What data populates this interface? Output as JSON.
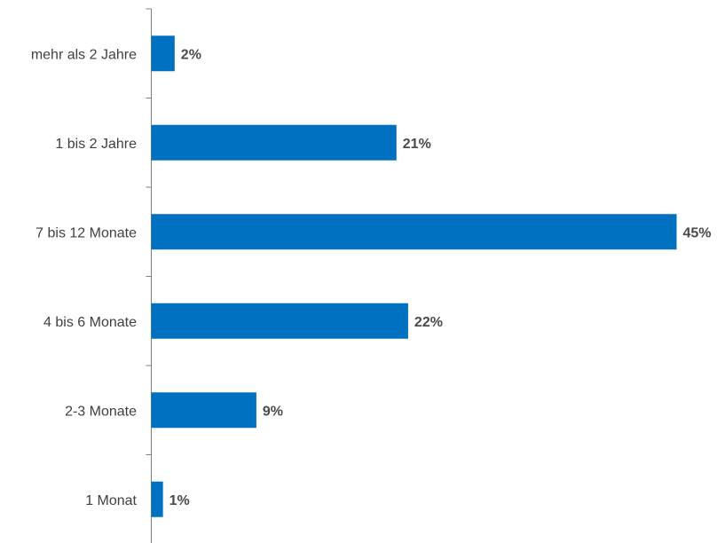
{
  "chart_data": {
    "type": "bar",
    "orientation": "horizontal",
    "categories": [
      "mehr als 2 Jahre",
      "1 bis 2 Jahre",
      "7 bis 12 Monate",
      "4 bis 6 Monate",
      "2-3 Monate",
      "1 Monat"
    ],
    "values": [
      2,
      21,
      45,
      22,
      9,
      1
    ],
    "value_labels": [
      "2%",
      "21%",
      "45%",
      "22%",
      "9%",
      "1%"
    ],
    "unit": "%",
    "xlim": [
      0,
      45
    ],
    "bar_color": "#0070C0",
    "axis_color": "#7f7f7f",
    "grid": false,
    "legend": "none"
  }
}
